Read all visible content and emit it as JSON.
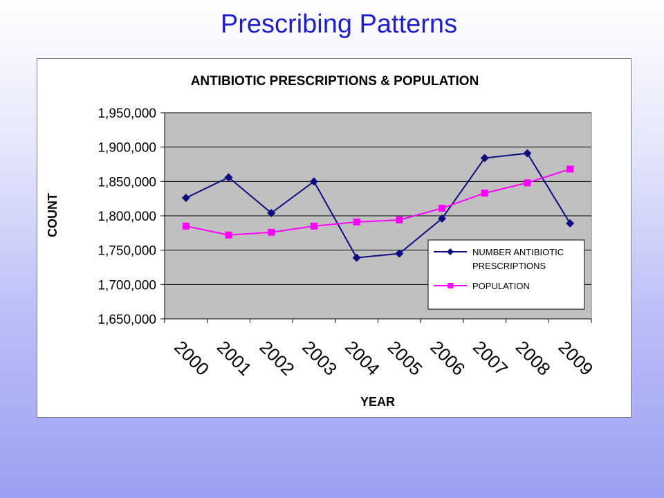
{
  "slide": {
    "title": "Prescribing Patterns"
  },
  "colors": {
    "plot_bg": "#c0c0c0",
    "series_1": "#0d0d80",
    "series_2": "#ff00ff"
  },
  "chart_data": {
    "type": "line",
    "title": "ANTIBIOTIC PRESCRIPTIONS & POPULATION",
    "xlabel": "YEAR",
    "ylabel": "COUNT",
    "categories": [
      "2000",
      "2001",
      "2002",
      "2003",
      "2004",
      "2005",
      "2006",
      "2007",
      "2008",
      "2009"
    ],
    "ylim": [
      1650000,
      1950000
    ],
    "yticks": [
      {
        "value": 1650000,
        "label": "1,650,000"
      },
      {
        "value": 1700000,
        "label": "1,700,000"
      },
      {
        "value": 1750000,
        "label": "1,750,000"
      },
      {
        "value": 1800000,
        "label": "1,800,000"
      },
      {
        "value": 1850000,
        "label": "1,850,000"
      },
      {
        "value": 1900000,
        "label": "1,900,000"
      },
      {
        "value": 1950000,
        "label": "1,950,000"
      }
    ],
    "grid": "horizontal",
    "legend_position": "bottom-right",
    "series": [
      {
        "name": "NUMBER ANTIBIOTIC PRESCRIPTIONS",
        "legend_lines": [
          "NUMBER ANTIBIOTIC",
          "PRESCRIPTIONS"
        ],
        "marker": "diamond",
        "values": [
          1826000,
          1856000,
          1804000,
          1850000,
          1739000,
          1745000,
          1796000,
          1884000,
          1891000,
          1789000
        ]
      },
      {
        "name": "POPULATION",
        "legend_lines": [
          "POPULATION"
        ],
        "marker": "square",
        "values": [
          1785000,
          1772000,
          1776000,
          1785000,
          1791000,
          1794000,
          1811000,
          1833000,
          1848000,
          1868000
        ]
      }
    ]
  }
}
